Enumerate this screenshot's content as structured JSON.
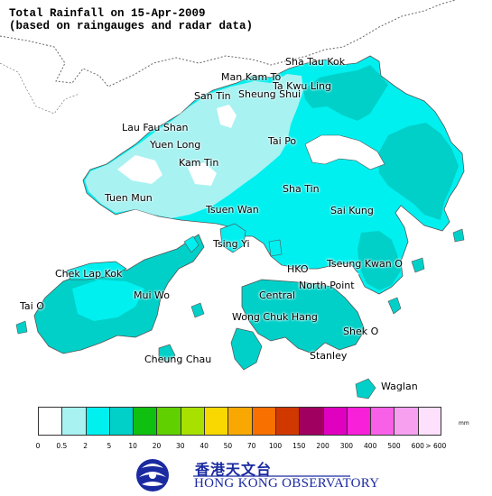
{
  "title": {
    "line1": "Total Rainfall on 15-Apr-2009",
    "line2": "(based on raingauges and radar data)"
  },
  "places": [
    {
      "id": "sha-tau-kok",
      "name": "Sha Tau Kok"
    },
    {
      "id": "man-kam-to",
      "name": "Man Kam To"
    },
    {
      "id": "ta-kwu-ling",
      "name": "Ta Kwu Ling"
    },
    {
      "id": "san-tin",
      "name": "San Tin"
    },
    {
      "id": "sheung-shui",
      "name": "Sheung Shui"
    },
    {
      "id": "lau-fau-shan",
      "name": "Lau Fau Shan"
    },
    {
      "id": "yuen-long",
      "name": "Yuen Long"
    },
    {
      "id": "tai-po",
      "name": "Tai Po"
    },
    {
      "id": "kam-tin",
      "name": "Kam Tin"
    },
    {
      "id": "tuen-mun",
      "name": "Tuen Mun"
    },
    {
      "id": "sha-tin",
      "name": "Sha Tin"
    },
    {
      "id": "tsuen-wan",
      "name": "Tsuen Wan"
    },
    {
      "id": "sai-kung",
      "name": "Sai Kung"
    },
    {
      "id": "tsing-yi",
      "name": "Tsing Yi"
    },
    {
      "id": "hko",
      "name": "HKO"
    },
    {
      "id": "tseung-kwan-o",
      "name": "Tseung Kwan O"
    },
    {
      "id": "chek-lap-kok",
      "name": "Chek Lap Kok"
    },
    {
      "id": "north-point",
      "name": "North Point"
    },
    {
      "id": "mui-wo",
      "name": "Mui Wo"
    },
    {
      "id": "central",
      "name": "Central"
    },
    {
      "id": "tai-o",
      "name": "Tai O"
    },
    {
      "id": "wong-chuk-hang",
      "name": "Wong Chuk Hang"
    },
    {
      "id": "shek-o",
      "name": "Shek O"
    },
    {
      "id": "cheung-chau",
      "name": "Cheung Chau"
    },
    {
      "id": "stanley",
      "name": "Stanley"
    },
    {
      "id": "waglan",
      "name": "Waglan"
    }
  ],
  "legend": {
    "unit": "mm",
    "colors": [
      "#ffffff",
      "#a8f2f2",
      "#00f0f0",
      "#00d0c8",
      "#10c010",
      "#60d000",
      "#a8e000",
      "#f8d800",
      "#f8a800",
      "#f87000",
      "#d03800",
      "#a00060",
      "#e000c0",
      "#f820d8",
      "#f860e8",
      "#f8a0f0",
      "#fce0fc"
    ],
    "ticks": [
      "0",
      "0.5",
      "2",
      "5",
      "10",
      "20",
      "30",
      "40",
      "50",
      "70",
      "100",
      "150",
      "200",
      "300",
      "400",
      "500",
      "600",
      "> 600"
    ]
  },
  "logo": {
    "chinese": "香港天文台",
    "english": "HONG KONG OBSERVATORY"
  }
}
